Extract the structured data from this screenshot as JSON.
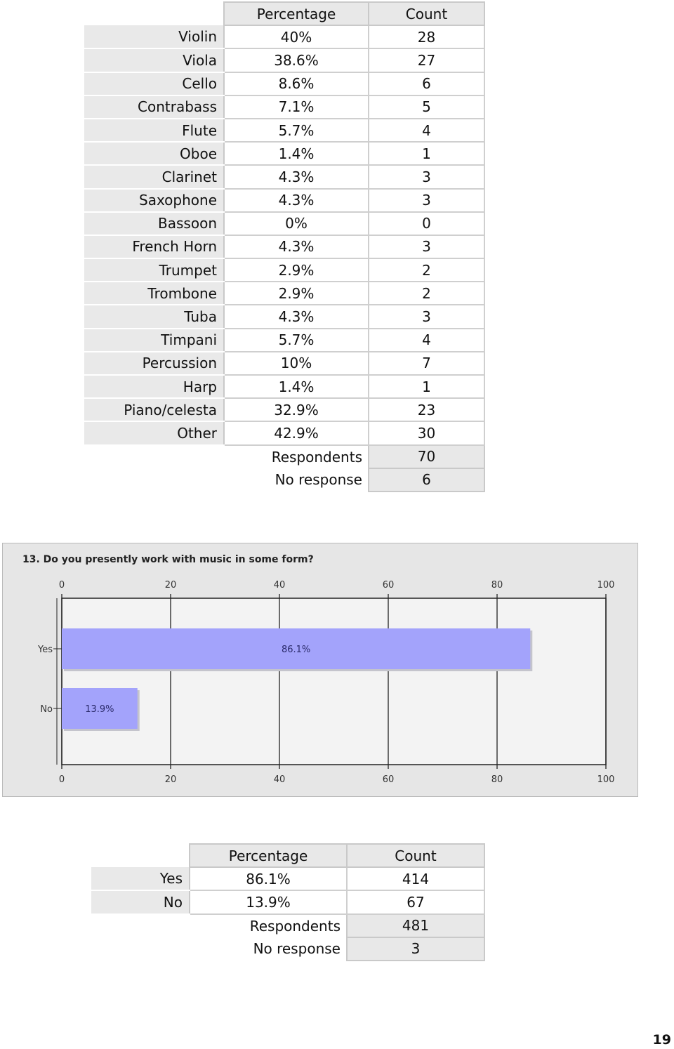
{
  "instrument_table": {
    "headers": [
      "Percentage",
      "Count"
    ],
    "rows": [
      {
        "label": "Violin",
        "percentage": "40%",
        "count": "28"
      },
      {
        "label": "Viola",
        "percentage": "38.6%",
        "count": "27"
      },
      {
        "label": "Cello",
        "percentage": "8.6%",
        "count": "6"
      },
      {
        "label": "Contrabass",
        "percentage": "7.1%",
        "count": "5"
      },
      {
        "label": "Flute",
        "percentage": "5.7%",
        "count": "4"
      },
      {
        "label": "Oboe",
        "percentage": "1.4%",
        "count": "1"
      },
      {
        "label": "Clarinet",
        "percentage": "4.3%",
        "count": "3"
      },
      {
        "label": "Saxophone",
        "percentage": "4.3%",
        "count": "3"
      },
      {
        "label": "Bassoon",
        "percentage": "0%",
        "count": "0"
      },
      {
        "label": "French Horn",
        "percentage": "4.3%",
        "count": "3"
      },
      {
        "label": "Trumpet",
        "percentage": "2.9%",
        "count": "2"
      },
      {
        "label": "Trombone",
        "percentage": "2.9%",
        "count": "2"
      },
      {
        "label": "Tuba",
        "percentage": "4.3%",
        "count": "3"
      },
      {
        "label": "Timpani",
        "percentage": "5.7%",
        "count": "4"
      },
      {
        "label": "Percussion",
        "percentage": "10%",
        "count": "7"
      },
      {
        "label": "Harp",
        "percentage": "1.4%",
        "count": "1"
      },
      {
        "label": "Piano/celesta",
        "percentage": "32.9%",
        "count": "23"
      },
      {
        "label": "Other",
        "percentage": "42.9%",
        "count": "30"
      }
    ],
    "respondents_label": "Respondents",
    "respondents": "70",
    "no_response_label": "No response",
    "no_response": "6"
  },
  "chart_data": {
    "type": "bar",
    "orientation": "horizontal",
    "title": "13. Do you presently work with music in some form?",
    "categories": [
      "Yes",
      "No"
    ],
    "values": [
      86.1,
      13.9
    ],
    "data_labels": [
      "86.1%",
      "13.9%"
    ],
    "xlim": [
      0,
      100
    ],
    "ticks": [
      0,
      20,
      40,
      60,
      80,
      100
    ],
    "bar_color": "#a3a3fb",
    "grid": true
  },
  "work_table": {
    "headers": [
      "Percentage",
      "Count"
    ],
    "rows": [
      {
        "label": "Yes",
        "percentage": "86.1%",
        "count": "414"
      },
      {
        "label": "No",
        "percentage": "13.9%",
        "count": "67"
      }
    ],
    "respondents_label": "Respondents",
    "respondents": "481",
    "no_response_label": "No response",
    "no_response": "3"
  },
  "page_number": "19"
}
